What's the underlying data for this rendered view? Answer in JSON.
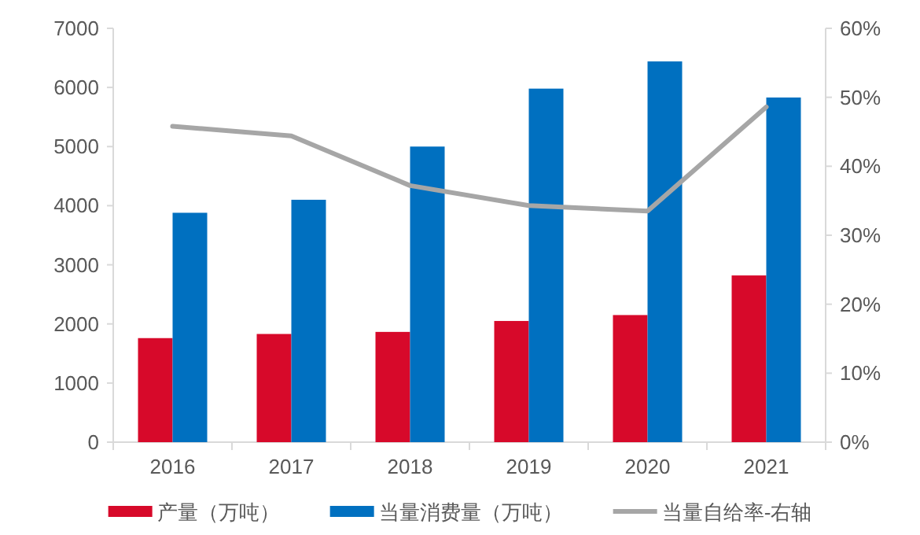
{
  "chart_data": {
    "type": "bar",
    "categories": [
      "2016",
      "2017",
      "2018",
      "2019",
      "2020",
      "2021"
    ],
    "series": [
      {
        "name": "产量（万吨）",
        "color": "#d7092a",
        "values": [
          1760,
          1830,
          1865,
          2050,
          2150,
          2820
        ]
      },
      {
        "name": "当量消费量（万吨）",
        "color": "#0070c0",
        "values": [
          3880,
          4100,
          5000,
          5980,
          6440,
          5830
        ]
      },
      {
        "name": "当量自给率-右轴",
        "type": "line",
        "axis": "y2",
        "color": "#a6a6a6",
        "values": [
          45.8,
          44.4,
          37.2,
          34.3,
          33.5,
          48.6
        ]
      }
    ],
    "ylim": [
      0,
      7000
    ],
    "yticks": [
      0,
      1000,
      2000,
      3000,
      4000,
      5000,
      6000,
      7000
    ],
    "y2lim": [
      0,
      60
    ],
    "y2ticks": [
      {
        "value": 0,
        "label": "0%"
      },
      {
        "value": 10,
        "label": "10%"
      },
      {
        "value": 20,
        "label": "20%"
      },
      {
        "value": 30,
        "label": "30%"
      },
      {
        "value": 40,
        "label": "40%"
      },
      {
        "value": 50,
        "label": "50%"
      },
      {
        "value": 60,
        "label": "60%"
      }
    ],
    "grid": false,
    "legend": "bottom"
  }
}
